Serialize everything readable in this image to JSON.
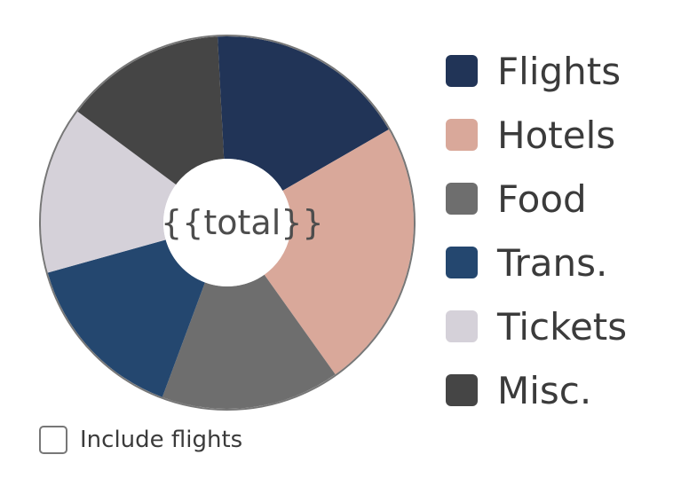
{
  "chart_data": {
    "type": "pie",
    "donut": true,
    "center_text": "{{total}}",
    "categories": [
      "Flights",
      "Hotels",
      "Food",
      "Trans.",
      "Tickets",
      "Misc."
    ],
    "values": [
      17.5,
      23.5,
      15.5,
      15.0,
      14.5,
      14.0
    ],
    "colors": [
      "#213457",
      "#d9a89a",
      "#6e6e6e",
      "#24476f",
      "#d5d1d9",
      "#454545"
    ],
    "legend_position": "right"
  },
  "controls": {
    "include_flights_label": "Include flights",
    "include_flights_checked": false
  }
}
